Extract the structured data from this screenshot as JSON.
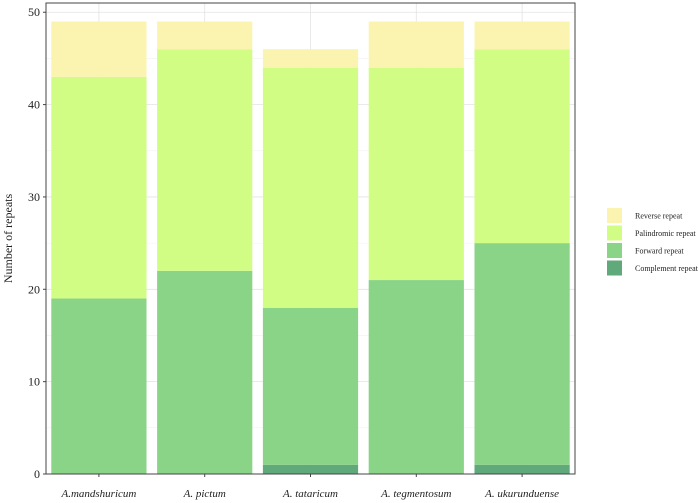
{
  "chart_data": {
    "type": "bar",
    "stacked": true,
    "title": "",
    "xlabel": "",
    "ylabel": "Number of repeats",
    "ylim": [
      0,
      50
    ],
    "yticks": [
      0,
      10,
      20,
      30,
      40,
      50
    ],
    "grid": true,
    "legend_position": "right",
    "categories": [
      "A.mandshuricum",
      "A. pictum",
      "A. tataricum",
      "A. tegmentosum",
      "A. ukurunduense"
    ],
    "series": [
      {
        "name": "Complement repeat",
        "color": "#5fa97b",
        "values": [
          0,
          0,
          1,
          0,
          1
        ]
      },
      {
        "name": "Forward repeat",
        "color": "#8ad488",
        "values": [
          19,
          22,
          17,
          21,
          24
        ]
      },
      {
        "name": "Palindromic repeat",
        "color": "#d2fd85",
        "values": [
          24,
          24,
          26,
          23,
          21
        ]
      },
      {
        "name": "Reverse repeat",
        "color": "#fbf4b0",
        "values": [
          6,
          3,
          2,
          5,
          3
        ]
      }
    ],
    "legend_order": [
      "Reverse repeat",
      "Palindromic repeat",
      "Forward repeat",
      "Complement repeat"
    ]
  }
}
